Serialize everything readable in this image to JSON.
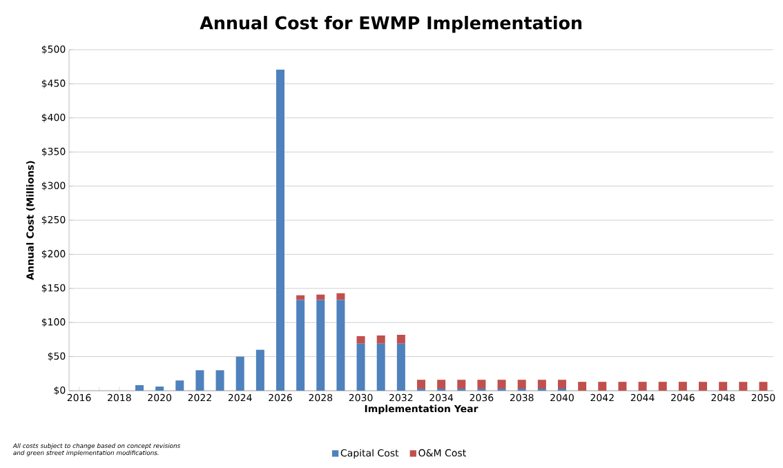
{
  "chart_data": {
    "type": "bar",
    "stacked": true,
    "title": "Annual Cost for EWMP Implementation",
    "xlabel": "Implementation Year",
    "ylabel": "Annual Cost (Millions)",
    "categories": [
      "2016",
      null,
      "2018",
      null,
      "2020",
      null,
      "2022",
      null,
      "2024",
      null,
      "2026",
      null,
      "2028",
      null,
      "2030",
      null,
      "2032",
      null,
      "2034",
      null,
      "2036",
      null,
      "2038",
      null,
      "2040",
      null,
      "2042",
      null,
      "2044",
      null,
      "2046",
      null,
      "2048",
      null,
      "2050"
    ],
    "series": [
      {
        "name": "Capital Cost",
        "color": "#4f81bd",
        "values": [
          0,
          0,
          0,
          8,
          6,
          15,
          30,
          30,
          50,
          60,
          471,
          133,
          133,
          133,
          69,
          69,
          69,
          3,
          3,
          3,
          3,
          3,
          3,
          3,
          3,
          0,
          0,
          0,
          0,
          0,
          0,
          0,
          0,
          0,
          0
        ]
      },
      {
        "name": "O&M Cost",
        "color": "#c0504d",
        "values": [
          0,
          0,
          0,
          0,
          0,
          0,
          0,
          0,
          0,
          0,
          0,
          7,
          8,
          10,
          11,
          12,
          13,
          13,
          13,
          13,
          13,
          13,
          13,
          13,
          13,
          13,
          13,
          13,
          13,
          13,
          13,
          13,
          13,
          13,
          13
        ]
      }
    ],
    "ylim": [
      0,
      500
    ],
    "yticks": [
      {
        "value": 0,
        "label": "$0"
      },
      {
        "value": 50,
        "label": "$50"
      },
      {
        "value": 100,
        "label": "$100"
      },
      {
        "value": 150,
        "label": "$150"
      },
      {
        "value": 200,
        "label": "$200"
      },
      {
        "value": 250,
        "label": "$250"
      },
      {
        "value": 300,
        "label": "$300"
      },
      {
        "value": 350,
        "label": "$350"
      },
      {
        "value": 400,
        "label": "$400"
      },
      {
        "value": 450,
        "label": "$450"
      },
      {
        "value": 500,
        "label": "$500"
      }
    ],
    "grid": "y",
    "legend": "bottom",
    "annotations": [
      "All costs subject to change based on concept revisions and green street implementation modifications."
    ]
  }
}
